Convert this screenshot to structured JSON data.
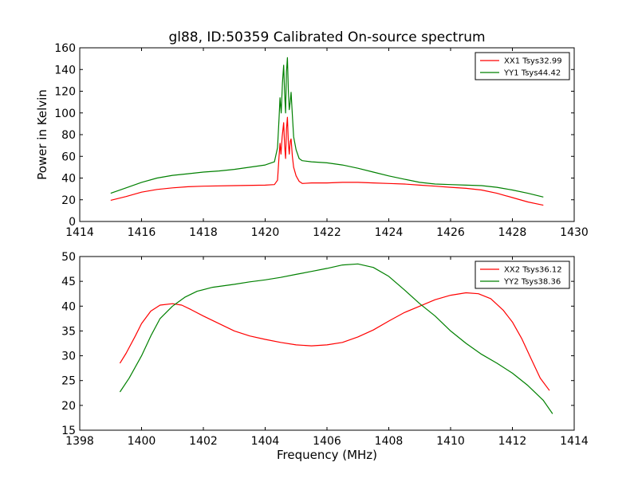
{
  "colors": {
    "xx": "#ff0000",
    "yy": "#008000",
    "frame": "#000000",
    "background": "#ffffff"
  },
  "chart_data": [
    {
      "type": "line",
      "title": "gl88, ID:50359 Calibrated On-source spectrum",
      "xlabel": "",
      "ylabel": "Power in Kelvin",
      "xlim": [
        1414,
        1430
      ],
      "ylim": [
        0,
        160
      ],
      "xticks": [
        1414,
        1416,
        1418,
        1420,
        1422,
        1424,
        1426,
        1428,
        1430
      ],
      "yticks": [
        0,
        20,
        40,
        60,
        80,
        100,
        120,
        140,
        160
      ],
      "legend_position": "top-right",
      "grid": false,
      "series": [
        {
          "name": "XX1 Tsys32.99",
          "color": "#ff0000",
          "points": [
            [
              1415.0,
              19.5
            ],
            [
              1415.5,
              23
            ],
            [
              1416.0,
              27
            ],
            [
              1416.5,
              29.5
            ],
            [
              1417.0,
              31
            ],
            [
              1417.5,
              32
            ],
            [
              1418.0,
              32.5
            ],
            [
              1419.0,
              33
            ],
            [
              1420.0,
              33.5
            ],
            [
              1420.3,
              34
            ],
            [
              1420.4,
              38
            ],
            [
              1420.45,
              60
            ],
            [
              1420.48,
              72
            ],
            [
              1420.51,
              62
            ],
            [
              1420.55,
              78
            ],
            [
              1420.6,
              91
            ],
            [
              1420.63,
              70
            ],
            [
              1420.66,
              58
            ],
            [
              1420.69,
              85
            ],
            [
              1420.72,
              96
            ],
            [
              1420.75,
              72
            ],
            [
              1420.78,
              62
            ],
            [
              1420.81,
              74
            ],
            [
              1420.84,
              76
            ],
            [
              1420.88,
              60
            ],
            [
              1420.92,
              50
            ],
            [
              1421.0,
              42
            ],
            [
              1421.1,
              37
            ],
            [
              1421.2,
              35
            ],
            [
              1421.5,
              35.5
            ],
            [
              1422.0,
              35.5
            ],
            [
              1422.5,
              36
            ],
            [
              1423.0,
              36
            ],
            [
              1423.5,
              35.5
            ],
            [
              1424.0,
              35
            ],
            [
              1424.5,
              34.5
            ],
            [
              1425.0,
              33.5
            ],
            [
              1425.5,
              32.5
            ],
            [
              1426.0,
              31.5
            ],
            [
              1426.5,
              30.5
            ],
            [
              1427.0,
              29
            ],
            [
              1427.5,
              26
            ],
            [
              1428.0,
              22
            ],
            [
              1428.5,
              18
            ],
            [
              1429.0,
              15
            ]
          ]
        },
        {
          "name": "YY1 Tsys44.42",
          "color": "#008000",
          "points": [
            [
              1415.0,
              26
            ],
            [
              1415.5,
              31
            ],
            [
              1416.0,
              36
            ],
            [
              1416.5,
              40
            ],
            [
              1417.0,
              42.5
            ],
            [
              1417.5,
              44
            ],
            [
              1418.0,
              45.5
            ],
            [
              1418.5,
              46.5
            ],
            [
              1419.0,
              48
            ],
            [
              1419.5,
              50
            ],
            [
              1420.0,
              52
            ],
            [
              1420.3,
              55
            ],
            [
              1420.4,
              68
            ],
            [
              1420.45,
              95
            ],
            [
              1420.48,
              114
            ],
            [
              1420.52,
              100
            ],
            [
              1420.56,
              128
            ],
            [
              1420.6,
              144
            ],
            [
              1420.63,
              118
            ],
            [
              1420.66,
              100
            ],
            [
              1420.69,
              138
            ],
            [
              1420.72,
              151
            ],
            [
              1420.75,
              120
            ],
            [
              1420.78,
              103
            ],
            [
              1420.81,
              110
            ],
            [
              1420.84,
              119
            ],
            [
              1420.88,
              98
            ],
            [
              1420.92,
              78
            ],
            [
              1421.0,
              66
            ],
            [
              1421.1,
              58
            ],
            [
              1421.2,
              56
            ],
            [
              1421.5,
              55
            ],
            [
              1422.0,
              54
            ],
            [
              1422.5,
              52
            ],
            [
              1423.0,
              49
            ],
            [
              1423.5,
              45.5
            ],
            [
              1424.0,
              42
            ],
            [
              1424.5,
              39
            ],
            [
              1425.0,
              36
            ],
            [
              1425.5,
              34.5
            ],
            [
              1426.0,
              34
            ],
            [
              1426.5,
              33.5
            ],
            [
              1427.0,
              33
            ],
            [
              1427.5,
              31.5
            ],
            [
              1428.0,
              29
            ],
            [
              1428.5,
              26
            ],
            [
              1429.0,
              22.5
            ]
          ]
        }
      ]
    },
    {
      "type": "line",
      "title": "",
      "xlabel": "Frequency (MHz)",
      "ylabel": "",
      "xlim": [
        1398,
        1414
      ],
      "ylim": [
        15,
        50
      ],
      "xticks": [
        1398,
        1400,
        1402,
        1404,
        1406,
        1408,
        1410,
        1412,
        1414
      ],
      "yticks": [
        15,
        20,
        25,
        30,
        35,
        40,
        45,
        50
      ],
      "legend_position": "top-right",
      "grid": false,
      "series": [
        {
          "name": "XX2 Tsys36.12",
          "color": "#ff0000",
          "points": [
            [
              1399.3,
              28.5
            ],
            [
              1399.5,
              30.5
            ],
            [
              1399.8,
              34
            ],
            [
              1400.0,
              36.5
            ],
            [
              1400.3,
              39
            ],
            [
              1400.6,
              40.2
            ],
            [
              1401.0,
              40.5
            ],
            [
              1401.3,
              40.2
            ],
            [
              1401.6,
              39.3
            ],
            [
              1402.0,
              38
            ],
            [
              1402.5,
              36.5
            ],
            [
              1403.0,
              35
            ],
            [
              1403.5,
              34
            ],
            [
              1404.0,
              33.3
            ],
            [
              1404.5,
              32.7
            ],
            [
              1405.0,
              32.2
            ],
            [
              1405.5,
              32
            ],
            [
              1406.0,
              32.2
            ],
            [
              1406.5,
              32.7
            ],
            [
              1407.0,
              33.8
            ],
            [
              1407.5,
              35.2
            ],
            [
              1408.0,
              37
            ],
            [
              1408.5,
              38.7
            ],
            [
              1409.0,
              40
            ],
            [
              1409.5,
              41.3
            ],
            [
              1410.0,
              42.2
            ],
            [
              1410.5,
              42.7
            ],
            [
              1410.9,
              42.5
            ],
            [
              1411.3,
              41.5
            ],
            [
              1411.7,
              39.2
            ],
            [
              1412.0,
              36.8
            ],
            [
              1412.3,
              33.5
            ],
            [
              1412.6,
              29.5
            ],
            [
              1412.9,
              25.5
            ],
            [
              1413.2,
              23
            ]
          ]
        },
        {
          "name": "YY2 Tsys38.36",
          "color": "#008000",
          "points": [
            [
              1399.3,
              22.7
            ],
            [
              1399.6,
              25.5
            ],
            [
              1400.0,
              30
            ],
            [
              1400.3,
              34
            ],
            [
              1400.6,
              37.5
            ],
            [
              1401.0,
              40
            ],
            [
              1401.4,
              41.8
            ],
            [
              1401.8,
              43
            ],
            [
              1402.3,
              43.8
            ],
            [
              1403.0,
              44.4
            ],
            [
              1403.5,
              44.9
            ],
            [
              1404.0,
              45.3
            ],
            [
              1404.5,
              45.8
            ],
            [
              1405.0,
              46.4
            ],
            [
              1405.5,
              47
            ],
            [
              1406.0,
              47.6
            ],
            [
              1406.5,
              48.3
            ],
            [
              1407.0,
              48.5
            ],
            [
              1407.5,
              47.8
            ],
            [
              1408.0,
              46
            ],
            [
              1408.5,
              43.3
            ],
            [
              1409.0,
              40.5
            ],
            [
              1409.5,
              38
            ],
            [
              1410.0,
              35
            ],
            [
              1410.5,
              32.5
            ],
            [
              1411.0,
              30.3
            ],
            [
              1411.5,
              28.5
            ],
            [
              1412.0,
              26.5
            ],
            [
              1412.5,
              24
            ],
            [
              1413.0,
              21
            ],
            [
              1413.3,
              18.3
            ]
          ]
        }
      ]
    }
  ]
}
